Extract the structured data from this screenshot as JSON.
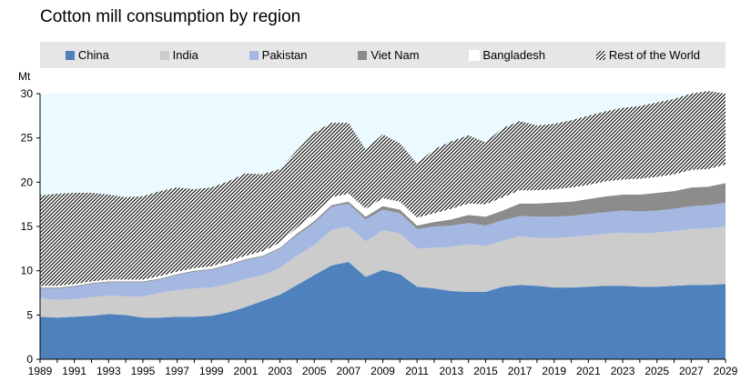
{
  "chart_data": {
    "type": "area",
    "title": "Cotton mill consumption by region",
    "ylabel": "Mt",
    "ylim": [
      0,
      30
    ],
    "yticks": [
      0,
      5,
      10,
      15,
      20,
      25,
      30
    ],
    "xlim": [
      1989,
      2029
    ],
    "xticks": [
      1989,
      1991,
      1993,
      1995,
      1997,
      1999,
      2001,
      2003,
      2005,
      2007,
      2009,
      2011,
      2013,
      2015,
      2017,
      2019,
      2021,
      2023,
      2025,
      2027,
      2029
    ],
    "legend_position": "top",
    "x": [
      1989,
      1990,
      1991,
      1992,
      1993,
      1994,
      1995,
      1996,
      1997,
      1998,
      1999,
      2000,
      2001,
      2002,
      2003,
      2004,
      2005,
      2006,
      2007,
      2008,
      2009,
      2010,
      2011,
      2012,
      2013,
      2014,
      2015,
      2016,
      2017,
      2018,
      2019,
      2020,
      2021,
      2022,
      2023,
      2024,
      2025,
      2026,
      2027,
      2028,
      2029
    ],
    "series": [
      {
        "name": "China",
        "color": "#4f81bd",
        "pattern": "solid",
        "values": [
          4.8,
          4.7,
          4.8,
          4.9,
          5.1,
          5.0,
          4.7,
          4.7,
          4.8,
          4.8,
          4.9,
          5.3,
          5.9,
          6.6,
          7.3,
          8.4,
          9.5,
          10.6,
          11.0,
          9.3,
          10.1,
          9.6,
          8.2,
          8.0,
          7.7,
          7.6,
          7.6,
          8.2,
          8.4,
          8.3,
          8.1,
          8.1,
          8.2,
          8.3,
          8.3,
          8.2,
          8.2,
          8.3,
          8.4,
          8.4,
          8.5
        ]
      },
      {
        "name": "India",
        "color": "#cccccc",
        "pattern": "solid",
        "values": [
          2.1,
          2.0,
          2.0,
          2.1,
          2.1,
          2.1,
          2.4,
          2.8,
          3.0,
          3.2,
          3.2,
          3.2,
          3.2,
          2.9,
          3.0,
          3.3,
          3.4,
          4.0,
          4.0,
          4.0,
          4.5,
          4.6,
          4.3,
          4.6,
          5.0,
          5.4,
          5.2,
          5.2,
          5.5,
          5.4,
          5.6,
          5.7,
          5.8,
          5.9,
          6.0,
          6.0,
          6.1,
          6.2,
          6.3,
          6.4,
          6.5
        ]
      },
      {
        "name": "Pakistan",
        "color": "#a5b8e2",
        "pattern": "solid",
        "values": [
          1.1,
          1.3,
          1.4,
          1.5,
          1.5,
          1.6,
          1.6,
          1.5,
          1.7,
          1.9,
          2.0,
          2.1,
          2.1,
          2.1,
          2.2,
          2.3,
          2.5,
          2.6,
          2.6,
          2.5,
          2.3,
          2.3,
          2.2,
          2.4,
          2.4,
          2.4,
          2.3,
          2.3,
          2.3,
          2.4,
          2.4,
          2.4,
          2.4,
          2.4,
          2.5,
          2.5,
          2.5,
          2.5,
          2.6,
          2.6,
          2.7
        ]
      },
      {
        "name": "Viet Nam",
        "color": "#8c8c8c",
        "pattern": "solid",
        "values": [
          0.1,
          0.1,
          0.1,
          0.1,
          0.1,
          0.1,
          0.1,
          0.1,
          0.1,
          0.1,
          0.1,
          0.1,
          0.1,
          0.1,
          0.1,
          0.2,
          0.2,
          0.2,
          0.2,
          0.3,
          0.4,
          0.4,
          0.4,
          0.5,
          0.7,
          0.9,
          1.0,
          1.1,
          1.4,
          1.5,
          1.6,
          1.6,
          1.7,
          1.8,
          1.8,
          1.9,
          2.0,
          2.0,
          2.1,
          2.1,
          2.2
        ]
      },
      {
        "name": "Bangladesh",
        "color": "#ffffff",
        "pattern": "solid",
        "values": [
          0.2,
          0.2,
          0.2,
          0.2,
          0.2,
          0.2,
          0.2,
          0.3,
          0.3,
          0.3,
          0.3,
          0.4,
          0.4,
          0.5,
          0.6,
          0.7,
          0.8,
          0.9,
          0.9,
          0.9,
          0.9,
          0.9,
          0.9,
          1.0,
          1.2,
          1.3,
          1.4,
          1.5,
          1.5,
          1.5,
          1.5,
          1.6,
          1.6,
          1.7,
          1.7,
          1.8,
          1.8,
          1.9,
          2.0,
          2.0,
          2.1
        ]
      },
      {
        "name": "Rest of the World",
        "color": "#000000",
        "pattern": "hatch",
        "values": [
          10.2,
          10.4,
          10.3,
          10.0,
          9.6,
          9.3,
          9.4,
          9.6,
          9.5,
          8.9,
          8.9,
          9.0,
          9.3,
          8.7,
          8.3,
          8.7,
          9.2,
          8.4,
          8.0,
          6.7,
          7.2,
          6.6,
          6.1,
          7.2,
          7.6,
          7.7,
          7.0,
          7.8,
          7.8,
          7.3,
          7.4,
          7.6,
          7.8,
          7.9,
          8.1,
          8.2,
          8.4,
          8.5,
          8.6,
          8.8,
          8.0
        ]
      }
    ]
  }
}
